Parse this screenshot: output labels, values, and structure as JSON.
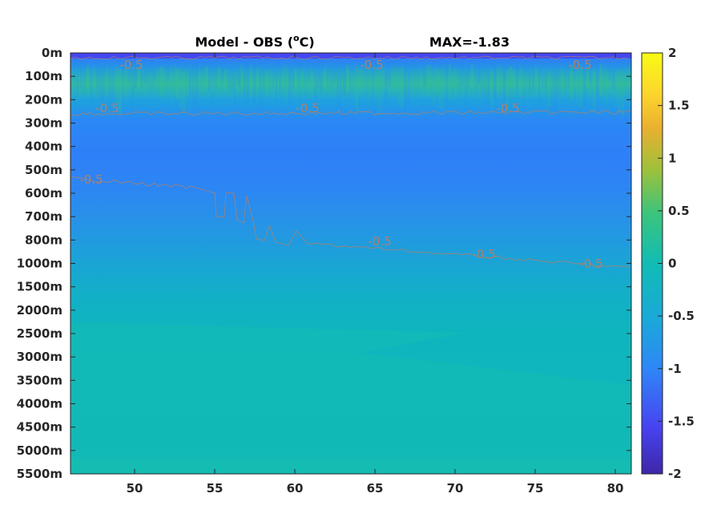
{
  "chart_data": {
    "type": "heatmap",
    "title_left": "Model - OBS (",
    "title_unit_sup": "o",
    "title_unit_tail": "C)",
    "title_right": "MAX=-1.83",
    "x_ticks": [
      50,
      55,
      60,
      65,
      70,
      75,
      80
    ],
    "x_range": [
      46,
      81
    ],
    "y_ticks": [
      "0m",
      "100m",
      "200m",
      "300m",
      "400m",
      "500m",
      "600m",
      "700m",
      "800m",
      "1000m",
      "1500m",
      "2000m",
      "2500m",
      "3000m",
      "3500m",
      "4000m",
      "4500m",
      "5000m",
      "5500m"
    ],
    "colorbar": {
      "range": [
        -2,
        2
      ],
      "ticks": [
        2,
        1.5,
        1,
        0.5,
        0,
        -0.5,
        -1,
        -1.5,
        -2
      ],
      "colors": [
        "#3e26a8",
        "#4743f0",
        "#2e87f7",
        "#1aa9d8",
        "#11bcb4",
        "#3cc47c",
        "#9cc13c",
        "#e9b030",
        "#fcd42d",
        "#f9fb15"
      ]
    },
    "contour_level": -0.5,
    "contour_labels": [
      {
        "text": "-0.5",
        "x": 49.8,
        "depth": "0m-100m"
      },
      {
        "text": "-0.5",
        "x": 64.8,
        "depth": "0m-100m"
      },
      {
        "text": "-0.5",
        "x": 77.8,
        "depth": "0m-100m"
      },
      {
        "text": "-0.5",
        "x": 48.3,
        "depth": "200m-300m"
      },
      {
        "text": "-0.5",
        "x": 60.8,
        "depth": "200m-300m"
      },
      {
        "text": "-0.5",
        "x": 73.3,
        "depth": "200m-300m"
      },
      {
        "text": "-0.5",
        "x": 47.3,
        "depth": "500m-600m"
      },
      {
        "text": "-0.5",
        "x": 65.3,
        "depth": "800m-1000m"
      },
      {
        "text": "-0.5",
        "x": 71.8,
        "depth": "800m-1000m"
      },
      {
        "text": "-0.5",
        "x": 78.5,
        "depth": "1000m"
      }
    ]
  }
}
